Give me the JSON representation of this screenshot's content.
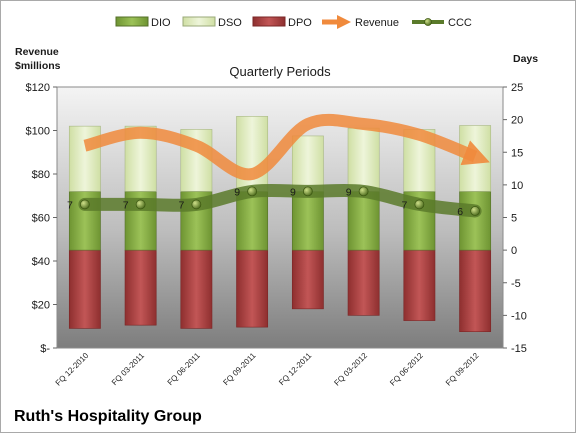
{
  "chart_data": {
    "type": "bar",
    "subtitle": "Quarterly Periods",
    "company": "Ruth's Hospitality Group",
    "left_axis": {
      "title_lines": [
        "Revenue",
        "$millions"
      ],
      "ylim": [
        0,
        120
      ],
      "ticks": [
        "$-",
        "$20",
        "$40",
        "$60",
        "$80",
        "$100",
        "$120"
      ]
    },
    "right_axis": {
      "title": "Days",
      "ylim": [
        -15,
        25
      ],
      "ticks": [
        "-15",
        "-10",
        "-5",
        "0",
        "5",
        "10",
        "15",
        "20",
        "25"
      ]
    },
    "categories": [
      "FQ 12-2010",
      "FQ 03-2011",
      "FQ 06-2011",
      "FQ 09-2011",
      "FQ 12-2011",
      "FQ 03-2012",
      "FQ 06-2012",
      "FQ 09-2012"
    ],
    "series": [
      {
        "name": "DIO",
        "axis": "right",
        "kind": "stacked-bar",
        "color": "#8db04a",
        "values": [
          9,
          9,
          9,
          9,
          9,
          9,
          9,
          9
        ]
      },
      {
        "name": "DSO",
        "axis": "right",
        "kind": "stacked-bar",
        "color": "#e4efc7",
        "values": [
          10,
          10,
          9.5,
          11.5,
          8.5,
          9.7,
          9.5,
          10.1
        ]
      },
      {
        "name": "DPO",
        "axis": "right",
        "kind": "negative-bar",
        "color": "#b94a4a",
        "values": [
          -12,
          -11.5,
          -12,
          -11.8,
          -9,
          -10,
          -10.8,
          -12.5
        ]
      },
      {
        "name": "Revenue",
        "axis": "left",
        "kind": "line",
        "color": "#f08a3c",
        "values": [
          93,
          99,
          93,
          80,
          103,
          103,
          98,
          88
        ]
      },
      {
        "name": "CCC",
        "axis": "right",
        "kind": "line",
        "color": "#5a7a2a",
        "values": [
          7,
          7,
          7,
          9,
          9,
          9,
          7,
          6
        ],
        "labels": [
          "7",
          "7",
          "7",
          "9",
          "9",
          "9",
          "7",
          "6"
        ]
      }
    ],
    "legend": {
      "position": "top",
      "items": [
        "DIO",
        "DSO",
        "DPO",
        "Revenue",
        "CCC"
      ]
    },
    "grid": false
  }
}
